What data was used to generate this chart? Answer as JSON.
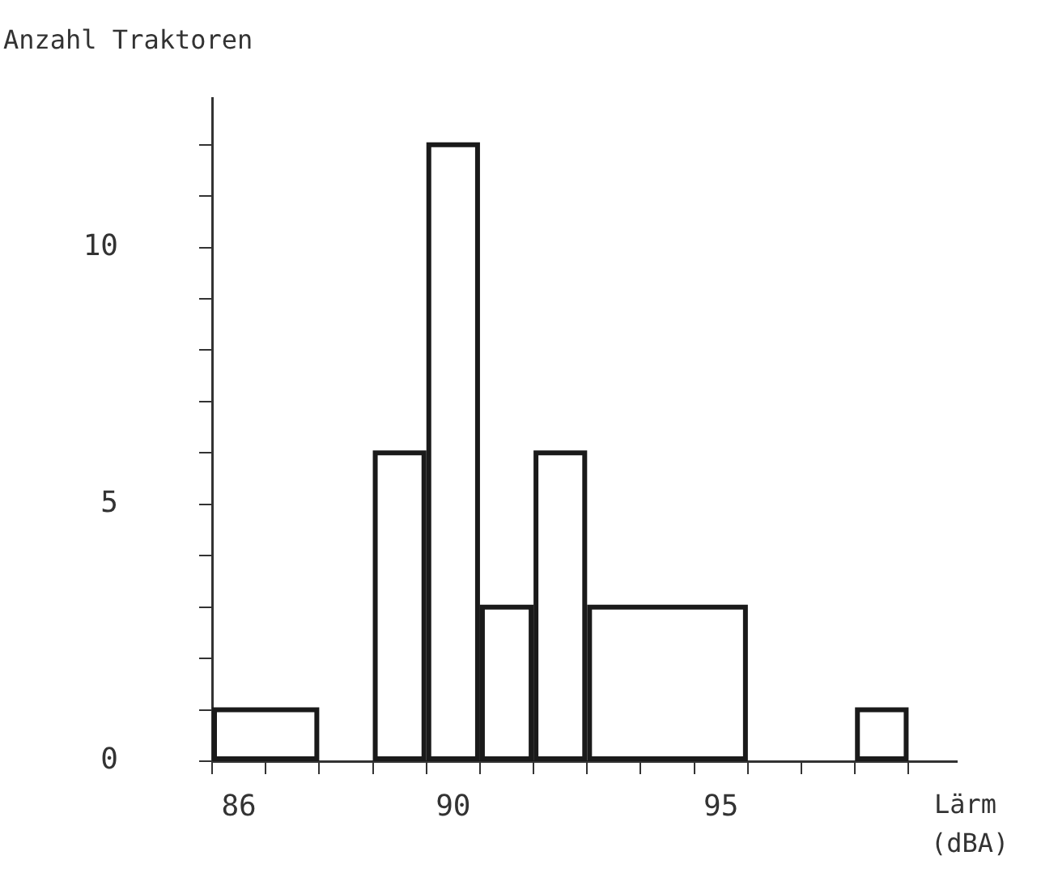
{
  "chart_data": {
    "type": "histogram",
    "ylabel": "Anzahl Traktoren",
    "xlabel": "Lärm (dBA)",
    "bins": [
      85.5,
      87.5,
      88.5,
      89.5,
      90.5,
      91.5,
      92.5,
      95.5,
      97.5,
      98.5
    ],
    "values": [
      1,
      0,
      6,
      12,
      3,
      6,
      3,
      0,
      1
    ],
    "color": "#1a1a1a",
    "xlim": [
      85.5,
      99.4
    ],
    "ylim": [
      0,
      12.9
    ],
    "xticks": [
      {
        "value": 85.5,
        "label": null
      },
      {
        "value": 86,
        "label": "86"
      },
      {
        "value": 86.5,
        "label": null
      },
      {
        "value": 87.5,
        "label": null
      },
      {
        "value": 88.5,
        "label": null
      },
      {
        "value": 89.5,
        "label": null
      },
      {
        "value": 90,
        "label": "90"
      },
      {
        "value": 90.5,
        "label": null
      },
      {
        "value": 91.5,
        "label": null
      },
      {
        "value": 92.5,
        "label": null
      },
      {
        "value": 93.5,
        "label": null
      },
      {
        "value": 94.5,
        "label": null
      },
      {
        "value": 95,
        "label": "95"
      },
      {
        "value": 95.5,
        "label": null
      },
      {
        "value": 96.5,
        "label": null
      },
      {
        "value": 97.5,
        "label": null
      },
      {
        "value": 98.5,
        "label": null
      }
    ],
    "yticks": [
      0,
      {
        "value": 1,
        "label": null
      },
      {
        "value": 2,
        "label": null
      },
      {
        "value": 3,
        "label": null
      },
      {
        "value": 4,
        "label": null
      },
      5,
      {
        "value": 6,
        "label": null
      },
      {
        "value": 7,
        "label": null
      },
      {
        "value": 8,
        "label": null
      },
      {
        "value": 9,
        "label": null
      },
      10,
      {
        "value": 11,
        "label": null
      },
      {
        "value": 12,
        "label": null
      }
    ],
    "grid": false,
    "legend": false
  }
}
